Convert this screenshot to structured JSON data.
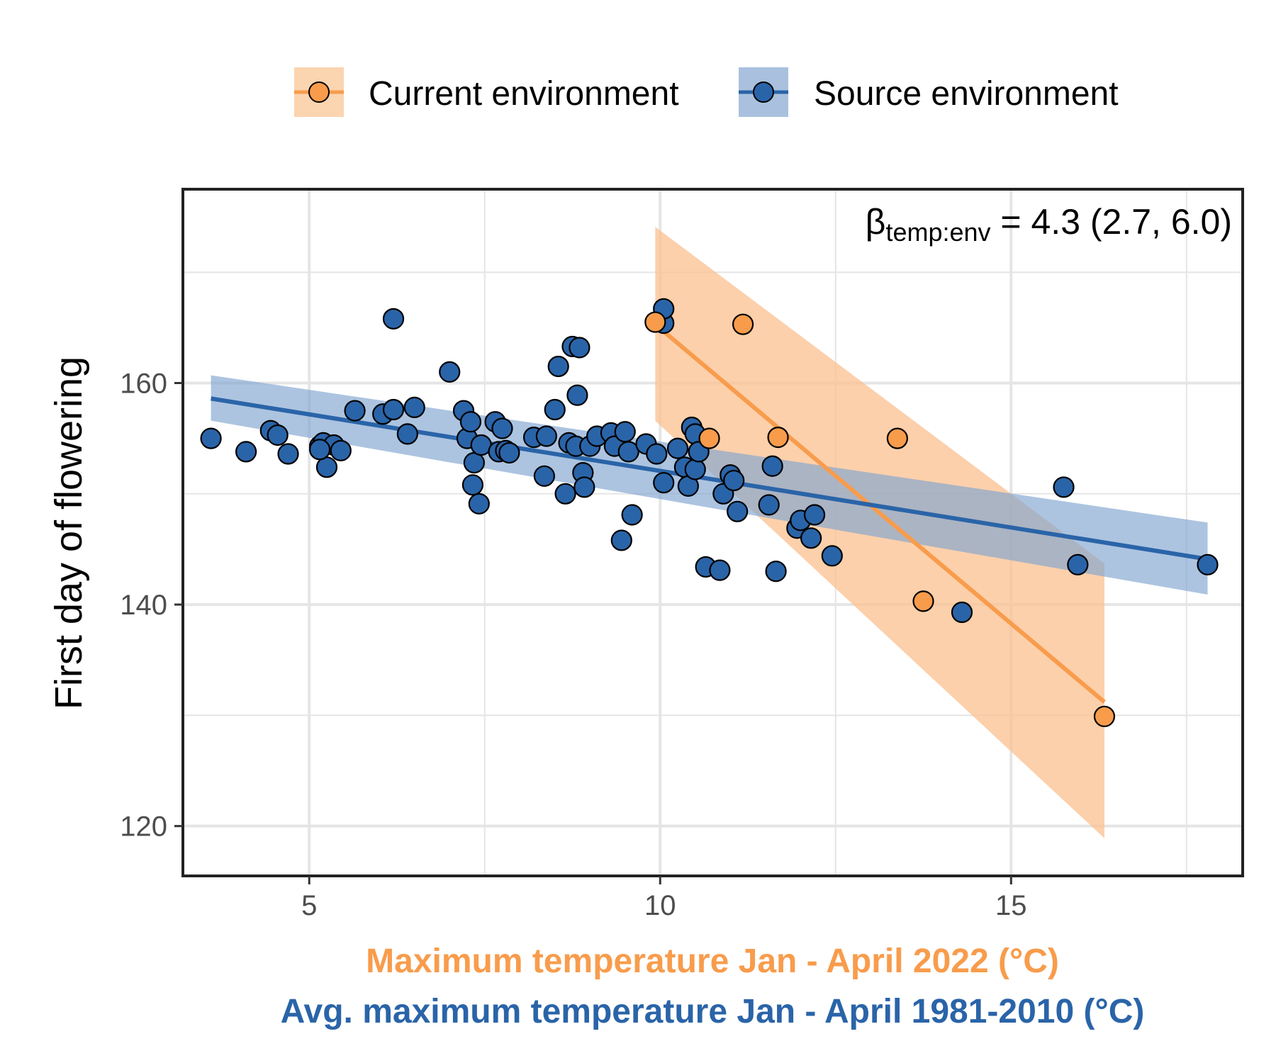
{
  "chart_data": {
    "type": "scatter",
    "title": "",
    "xlabel_current": "Maximum temperature Jan - April 2022 (°C)",
    "xlabel_source": "Avg. maximum temperature Jan - April 1981-2010 (°C)",
    "ylabel": "First day of flowering",
    "xlim": [
      3.2,
      18.3
    ],
    "ylim": [
      115.5,
      177.5
    ],
    "xticks": [
      5,
      10,
      15
    ],
    "yticks": [
      120,
      140,
      160
    ],
    "grid": true,
    "legend_position": "top",
    "annotation": {
      "symbol": "β",
      "subscript": "temp:env",
      "text": " = 4.3 (2.7, 6.0)"
    },
    "colors": {
      "current": "#F89C4C",
      "source": "#2A64A8",
      "current_band": "#FBC08F",
      "source_band": "#7FA4D0"
    },
    "series": [
      {
        "name": "Current environment",
        "color": "#F89C4C",
        "fit": {
          "x": [
            9.93,
            16.33
          ],
          "y": [
            165.3,
            131.2
          ]
        },
        "band": {
          "x": [
            9.93,
            16.33
          ],
          "upper": [
            174.1,
            143.7
          ],
          "lower": [
            156.6,
            118.9
          ]
        },
        "points": [
          [
            9.93,
            165.5
          ],
          [
            11.18,
            165.3
          ],
          [
            10.7,
            155.0
          ],
          [
            11.68,
            155.1
          ],
          [
            13.38,
            155.0
          ],
          [
            13.75,
            140.3
          ],
          [
            16.33,
            129.9
          ]
        ]
      },
      {
        "name": "Source environment",
        "color": "#2A64A8",
        "fit": {
          "x": [
            3.6,
            17.8
          ],
          "y": [
            158.6,
            144.1
          ]
        },
        "band": {
          "x": [
            3.6,
            17.8
          ],
          "upper": [
            160.7,
            147.4
          ],
          "lower": [
            156.6,
            140.9
          ]
        },
        "points": [
          [
            3.6,
            155.0
          ],
          [
            4.1,
            153.8
          ],
          [
            4.45,
            155.7
          ],
          [
            4.55,
            155.3
          ],
          [
            4.7,
            153.6
          ],
          [
            5.15,
            154.3
          ],
          [
            5.2,
            154.6
          ],
          [
            5.25,
            152.4
          ],
          [
            5.35,
            154.4
          ],
          [
            5.45,
            153.9
          ],
          [
            5.15,
            154.0
          ],
          [
            5.65,
            157.5
          ],
          [
            6.05,
            157.2
          ],
          [
            6.2,
            157.6
          ],
          [
            6.4,
            155.4
          ],
          [
            6.5,
            157.8
          ],
          [
            6.2,
            165.8
          ],
          [
            7.0,
            161.0
          ],
          [
            7.2,
            157.5
          ],
          [
            7.25,
            155.0
          ],
          [
            7.3,
            156.5
          ],
          [
            7.35,
            152.8
          ],
          [
            7.33,
            150.8
          ],
          [
            7.42,
            149.1
          ],
          [
            7.45,
            154.4
          ],
          [
            7.65,
            156.5
          ],
          [
            7.7,
            153.8
          ],
          [
            7.75,
            155.9
          ],
          [
            7.8,
            153.9
          ],
          [
            7.85,
            153.7
          ],
          [
            8.2,
            155.1
          ],
          [
            8.35,
            151.6
          ],
          [
            8.38,
            155.2
          ],
          [
            8.5,
            157.6
          ],
          [
            8.55,
            161.5
          ],
          [
            8.65,
            150.0
          ],
          [
            8.7,
            154.6
          ],
          [
            8.75,
            163.3
          ],
          [
            8.8,
            154.3
          ],
          [
            8.82,
            158.9
          ],
          [
            8.85,
            163.2
          ],
          [
            8.9,
            151.9
          ],
          [
            8.92,
            150.6
          ],
          [
            9.0,
            154.3
          ],
          [
            9.1,
            155.2
          ],
          [
            9.3,
            155.5
          ],
          [
            9.35,
            154.3
          ],
          [
            9.45,
            145.8
          ],
          [
            9.5,
            155.6
          ],
          [
            9.55,
            153.8
          ],
          [
            9.6,
            148.1
          ],
          [
            9.8,
            154.5
          ],
          [
            9.95,
            153.6
          ],
          [
            10.05,
            151.0
          ],
          [
            10.05,
            165.4
          ],
          [
            10.05,
            166.7
          ],
          [
            10.25,
            154.1
          ],
          [
            10.35,
            152.4
          ],
          [
            10.4,
            150.7
          ],
          [
            10.45,
            156.0
          ],
          [
            10.5,
            155.4
          ],
          [
            10.5,
            152.2
          ],
          [
            10.55,
            153.8
          ],
          [
            10.65,
            143.4
          ],
          [
            10.85,
            143.1
          ],
          [
            10.9,
            150.0
          ],
          [
            11.0,
            151.7
          ],
          [
            11.05,
            151.2
          ],
          [
            11.1,
            148.4
          ],
          [
            11.55,
            149.0
          ],
          [
            11.6,
            152.5
          ],
          [
            11.65,
            143.0
          ],
          [
            11.95,
            146.9
          ],
          [
            12.0,
            147.6
          ],
          [
            12.15,
            146.0
          ],
          [
            12.2,
            148.1
          ],
          [
            12.45,
            144.4
          ],
          [
            14.3,
            139.3
          ],
          [
            15.75,
            150.6
          ],
          [
            15.95,
            143.6
          ],
          [
            17.8,
            143.6
          ]
        ]
      }
    ]
  }
}
